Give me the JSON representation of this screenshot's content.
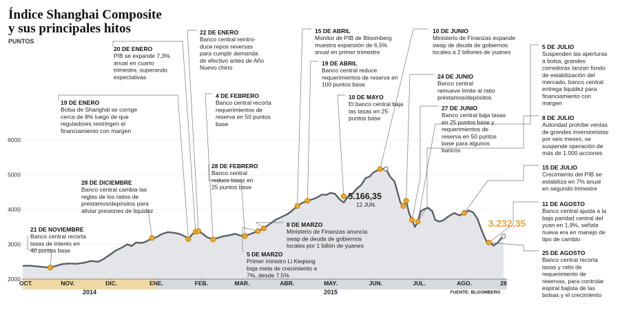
{
  "header": {
    "title_line1": "Índice Shanghai Composite",
    "title_line2": "y sus principales hitos",
    "subtitle": "PUNTOS"
  },
  "chart_data": {
    "type": "line",
    "title": "Índice Shanghai Composite y sus principales hitos",
    "ylabel": "PUNTOS",
    "ylim": [
      2000,
      6000
    ],
    "yticks": [
      "6000",
      "5000",
      "4000",
      "3000",
      "2000"
    ],
    "xlim": [
      0,
      332
    ],
    "months": [
      {
        "label": "OCT.",
        "day": 0
      },
      {
        "label": "NOV.",
        "day": 31
      },
      {
        "label": "DIC.",
        "day": 61
      },
      {
        "label": "ENE.",
        "day": 92
      },
      {
        "label": "FEB.",
        "day": 123
      },
      {
        "label": "MAR.",
        "day": 151
      },
      {
        "label": "ABR.",
        "day": 182
      },
      {
        "label": "MAY.",
        "day": 212
      },
      {
        "label": "JUN.",
        "day": 243
      },
      {
        "label": "JUL.",
        "day": 273
      },
      {
        "label": "AGO.",
        "day": 304
      },
      {
        "label": "28",
        "day": 331
      }
    ],
    "years": [
      {
        "label": "2014",
        "day": 46
      },
      {
        "label": "2015",
        "day": 212
      }
    ],
    "series": [
      {
        "name": "Shanghai Composite",
        "color": "#5a5f66",
        "points": [
          [
            0,
            2380
          ],
          [
            5,
            2385
          ],
          [
            10,
            2365
          ],
          [
            15,
            2345
          ],
          [
            19,
            2330
          ],
          [
            23,
            2380
          ],
          [
            27,
            2430
          ],
          [
            32,
            2450
          ],
          [
            37,
            2440
          ],
          [
            42,
            2470
          ],
          [
            47,
            2520
          ],
          [
            52,
            2500
          ],
          [
            55,
            2560
          ],
          [
            60,
            2700
          ],
          [
            64,
            2820
          ],
          [
            68,
            2900
          ],
          [
            72,
            3000
          ],
          [
            75,
            2950
          ],
          [
            78,
            3050
          ],
          [
            82,
            3040
          ],
          [
            85,
            3080
          ],
          [
            89,
            3180
          ],
          [
            92,
            3200
          ],
          [
            96,
            3300
          ],
          [
            100,
            3350
          ],
          [
            104,
            3330
          ],
          [
            108,
            3300
          ],
          [
            112,
            3220
          ],
          [
            114,
            3150
          ],
          [
            117,
            3300
          ],
          [
            119,
            3360
          ],
          [
            121,
            3380
          ],
          [
            124,
            3300
          ],
          [
            127,
            3200
          ],
          [
            131,
            3140
          ],
          [
            134,
            3180
          ],
          [
            138,
            3230
          ],
          [
            142,
            3260
          ],
          [
            146,
            3300
          ],
          [
            150,
            3250
          ],
          [
            153,
            3240
          ],
          [
            157,
            3300
          ],
          [
            162,
            3380
          ],
          [
            166,
            3460
          ],
          [
            170,
            3580
          ],
          [
            174,
            3700
          ],
          [
            178,
            3780
          ],
          [
            182,
            3860
          ],
          [
            185,
            3950
          ],
          [
            189,
            4100
          ],
          [
            192,
            4180
          ],
          [
            196,
            4250
          ],
          [
            200,
            4300
          ],
          [
            203,
            4350
          ],
          [
            206,
            4430
          ],
          [
            209,
            4420
          ],
          [
            212,
            4480
          ],
          [
            215,
            4450
          ],
          [
            218,
            4300
          ],
          [
            221,
            4200
          ],
          [
            224,
            4380
          ],
          [
            227,
            4450
          ],
          [
            230,
            4600
          ],
          [
            233,
            4700
          ],
          [
            236,
            4900
          ],
          [
            239,
            4950
          ],
          [
            241,
            5050
          ],
          [
            243,
            5100
          ],
          [
            246,
            5160
          ],
          [
            250,
            5166
          ],
          [
            253,
            4940
          ],
          [
            256,
            4800
          ],
          [
            258,
            4500
          ],
          [
            260,
            4200
          ],
          [
            262,
            4100
          ],
          [
            264,
            4250
          ],
          [
            266,
            3900
          ],
          [
            268,
            3700
          ],
          [
            270,
            3500
          ],
          [
            272,
            3650
          ],
          [
            274,
            3950
          ],
          [
            276,
            4000
          ],
          [
            279,
            4050
          ],
          [
            282,
            3950
          ],
          [
            284,
            3700
          ],
          [
            287,
            3650
          ],
          [
            290,
            3700
          ],
          [
            293,
            3800
          ],
          [
            297,
            3900
          ],
          [
            301,
            3830
          ],
          [
            304,
            3900
          ],
          [
            307,
            3970
          ],
          [
            310,
            3920
          ],
          [
            313,
            3740
          ],
          [
            316,
            3400
          ],
          [
            318,
            3200
          ],
          [
            320,
            3030
          ],
          [
            322,
            3060
          ],
          [
            324,
            2960
          ],
          [
            327,
            3050
          ],
          [
            329,
            3150
          ],
          [
            331,
            3232
          ]
        ]
      }
    ],
    "markers": [
      {
        "day": 19,
        "value": 2330,
        "kind": "gold"
      },
      {
        "day": 89,
        "value": 3180,
        "kind": "gold"
      },
      {
        "day": 114,
        "value": 3150,
        "kind": "gold"
      },
      {
        "day": 119,
        "value": 3360,
        "kind": "gold"
      },
      {
        "day": 121,
        "value": 3380,
        "kind": "gold"
      },
      {
        "day": 131,
        "value": 3140,
        "kind": "gold"
      },
      {
        "day": 153,
        "value": 3240,
        "kind": "gold"
      },
      {
        "day": 162,
        "value": 3380,
        "kind": "gold"
      },
      {
        "day": 166,
        "value": 3460,
        "kind": "gold"
      },
      {
        "day": 189,
        "value": 4100,
        "kind": "gold"
      },
      {
        "day": 196,
        "value": 4250,
        "kind": "gold"
      },
      {
        "day": 221,
        "value": 4380,
        "kind": "gold"
      },
      {
        "day": 246,
        "value": 5160,
        "kind": "gold"
      },
      {
        "day": 250,
        "value": 5166,
        "kind": "white"
      },
      {
        "day": 262,
        "value": 4100,
        "kind": "gold"
      },
      {
        "day": 264,
        "value": 4250,
        "kind": "gold"
      },
      {
        "day": 268,
        "value": 3700,
        "kind": "gold"
      },
      {
        "day": 272,
        "value": 3650,
        "kind": "gold"
      },
      {
        "day": 304,
        "value": 3900,
        "kind": "gold"
      },
      {
        "day": 321,
        "value": 3050,
        "kind": "gold"
      },
      {
        "day": 331,
        "value": 3232,
        "kind": "white"
      }
    ],
    "value_labels": [
      {
        "text": "5.166,35",
        "sub": "12 JUN."
      },
      {
        "text": "3.232,35"
      }
    ],
    "source": "FUENTE: BLOOMBERG"
  },
  "annotations": [
    {
      "date": "21 DE NOVIEMBRE",
      "lines": [
        "Banco central recorta",
        "tasas de interés en",
        "40 puntos base"
      ]
    },
    {
      "date": "28 DE DICIEMBRE",
      "lines": [
        "Banco central cambia las",
        "reglas de los ratios de",
        "préstamos/depósitos para",
        "aliviar presiones de liquidez"
      ]
    },
    {
      "date": "19 DE ENERO",
      "lines": [
        "Bolsa de Shanghái se corrige",
        "cerca de 8% luego de que",
        "reguladores restringen el",
        "financiamiento con margen"
      ]
    },
    {
      "date": "20 DE ENERO",
      "lines": [
        "PIB se expande 7,3%",
        "anual en cuarto",
        "trimestre, superando",
        "expectativas"
      ]
    },
    {
      "date": "22 DE ENERO",
      "lines": [
        "Banco central reintro-",
        "duce repos reversas",
        "para cumplir demanda",
        "de efectivo antes de Año",
        "Nuevo chino"
      ]
    },
    {
      "date": "4 DE FEBRERO",
      "lines": [
        "Banco central recorta",
        "requerimientos de",
        "reserva en 50 puntos",
        "base"
      ]
    },
    {
      "date": "28 DE FEBRERO",
      "lines": [
        "Banco central",
        "reduce tasas en",
        "25 puntos base"
      ]
    },
    {
      "date": "5 DE MARZO",
      "lines": [
        "Primer ministro Li Keqiang",
        "baja meta de crecimiento a",
        "7%, desde 7,5%"
      ]
    },
    {
      "date": "8 DE MARZO",
      "lines": [
        "Ministerio de Finanzas anuncia",
        "swap de deuda de gobiernos",
        "locales por 1 billón de yuanes"
      ]
    },
    {
      "date": "15 DE ABRIL",
      "lines": [
        "Monitor de PIB de Bloomberg",
        "muestra expansión de 6,5%",
        "anual en primer trimestre"
      ]
    },
    {
      "date": "19 DE ABRIL",
      "lines": [
        "Banco central reduce",
        "requerimientos de reserva en",
        "100 puntos base"
      ]
    },
    {
      "date": "10 DE MAYO",
      "lines": [
        "El banco central baja",
        "las tasas en 25",
        "puntos base"
      ]
    },
    {
      "date": "10 DE JUNIO",
      "lines": [
        "Ministerio de Finanzas expande",
        "swap de deuda de gobiernos",
        "locales a 2 billones de yuanes"
      ]
    },
    {
      "date": "24 DE JUNIO",
      "lines": [
        "Banco central",
        "remueve límite al ratio",
        "préstamos/depósitos"
      ]
    },
    {
      "date": "27 DE JUNIO",
      "lines": [
        "Banco central baja tasas",
        "en 25 puntos base y",
        "requerimientos de",
        "reserva en 50 puntos",
        "base para algunos",
        "bancos"
      ]
    },
    {
      "date": "5 DE JULIO",
      "lines": [
        "Suspenden las aperturas",
        "a bolsa, grandes",
        "corredoras lanzan fondo",
        "de estabilización del",
        "mercado, banco central",
        "entrega liquidez para",
        "financiamiento con",
        "margen"
      ]
    },
    {
      "date": "8 DE JULIO",
      "lines": [
        "Autoridad prohíbe ventas",
        "de grandes inversionistas",
        "por seis meses, se",
        "suspende operación de",
        "más de 1.000 acciones"
      ]
    },
    {
      "date": "15 DE JULIO",
      "lines": [
        "Crecimiento del PIB se",
        "estabiliza en 7% anual",
        "en segundo trimestre"
      ]
    },
    {
      "date": "11 DE AGOSTO",
      "lines": [
        "Banco central ajusta a la",
        "baja paridad central del",
        "yuan en 1,9%, señala",
        "nueva era en manejo de",
        "tipo de cambio"
      ]
    },
    {
      "date": "25 DE AGOSTO",
      "lines": [
        "Banco central recorta",
        "tasas y ratio de",
        "requerimiento de",
        "reservas, para controlar",
        "espiral bajista de las",
        "bolsas y el crecimiento"
      ]
    }
  ],
  "colors": {
    "line": "#5a5f66",
    "area": "#e3e5e8",
    "marker_gold": "#f0a820",
    "marker_gold_stroke": "#a87410",
    "accent_value": "#f0a030",
    "year_band_2014": "#eed9a6",
    "year_band_2015": "#d6d9dd",
    "leader": "#777777"
  }
}
